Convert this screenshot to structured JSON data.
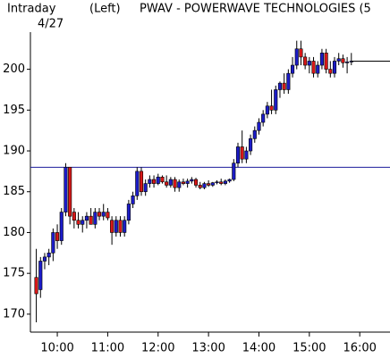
{
  "chart_data": {
    "type": "candlestick",
    "title": "PWAV - POWERWAVE TECHNOLOGIES (5",
    "period_label": "Intraday",
    "date_label": "4/27",
    "axis_side_label": "(Left)",
    "x": [
      575,
      580,
      585,
      590,
      595,
      600,
      605,
      610,
      615,
      620,
      625,
      630,
      635,
      640,
      645,
      650,
      655,
      660,
      665,
      670,
      675,
      680,
      685,
      690,
      695,
      700,
      705,
      710,
      715,
      720,
      725,
      730,
      735,
      740,
      745,
      750,
      755,
      760,
      765,
      770,
      775,
      780,
      785,
      790,
      795,
      800,
      805,
      810,
      815,
      820,
      825,
      830,
      835,
      840,
      845,
      850,
      855,
      860,
      865,
      870,
      875,
      880,
      885,
      890,
      895,
      900,
      905,
      910,
      915,
      920,
      925,
      930,
      935,
      940,
      945,
      950
    ],
    "open": [
      174.5,
      173,
      176.5,
      177,
      177.5,
      180,
      179,
      182.5,
      188,
      182.5,
      181.5,
      181,
      181.5,
      182,
      181,
      182.5,
      182,
      182.5,
      181.5,
      180,
      181.5,
      180,
      181.5,
      183.5,
      184.5,
      187.5,
      185,
      186,
      186.5,
      186,
      186.8,
      186.2,
      185.8,
      186.5,
      185.5,
      186.2,
      186,
      186.3,
      186.5,
      185.8,
      185.5,
      186,
      185.8,
      186.1,
      186.2,
      186,
      186.3,
      186.5,
      188.5,
      190.5,
      189,
      190,
      191.5,
      192.5,
      193.5,
      194.5,
      195.5,
      195,
      197.5,
      198.3,
      197.5,
      199.5,
      200.5,
      202.5,
      201.5,
      200.5,
      201,
      199.5,
      200.5,
      202,
      200,
      199.5,
      201,
      201.3,
      200.8,
      200.9
    ],
    "high": [
      178,
      177,
      177.5,
      178,
      180.5,
      181,
      183,
      188.5,
      188,
      183,
      182.5,
      182,
      182.5,
      183,
      183,
      183,
      183.5,
      183,
      182,
      182,
      182,
      182,
      184,
      185,
      188,
      188,
      186.5,
      187,
      187,
      187.2,
      187,
      187,
      186.8,
      186.8,
      186.5,
      186.6,
      186.6,
      186.8,
      186.7,
      186.2,
      186.2,
      186.4,
      186.2,
      186.4,
      186.6,
      186.5,
      186.6,
      189,
      191,
      192.5,
      190.5,
      192,
      193,
      194,
      195,
      196,
      197.5,
      198,
      198.5,
      199.5,
      200,
      201.5,
      203.5,
      203.5,
      202,
      201.5,
      201.5,
      201,
      202.5,
      202.5,
      201,
      201.5,
      202,
      201.8,
      201.5,
      202
    ],
    "low": [
      169,
      172,
      175.5,
      176,
      176.5,
      178,
      178.5,
      182,
      181,
      180.5,
      180.5,
      180,
      180.5,
      181,
      180.5,
      181.5,
      181.5,
      181.5,
      178.5,
      179.5,
      179.5,
      179.5,
      181,
      183,
      184,
      184.5,
      184.5,
      185.5,
      185.5,
      185.8,
      186,
      185.5,
      185.5,
      185,
      185,
      185.8,
      185.5,
      186,
      185.5,
      185.3,
      185.3,
      185.6,
      185.6,
      185.9,
      185.8,
      185.8,
      186.1,
      186.3,
      188,
      188.5,
      188.5,
      189.5,
      191,
      192,
      193,
      194,
      194.5,
      194.5,
      196.5,
      197,
      197,
      199,
      200,
      200.5,
      200,
      199.5,
      199,
      199,
      200,
      199.5,
      199,
      199,
      200.5,
      200.2,
      199.5,
      200.5
    ],
    "close": [
      172.5,
      176.5,
      177,
      177.5,
      180,
      179,
      182.5,
      188,
      182,
      181.5,
      181,
      181.5,
      182,
      181,
      182.5,
      182,
      182.5,
      181.8,
      180,
      181.5,
      180,
      181.5,
      183.5,
      184.5,
      187.5,
      185,
      186,
      186.5,
      186,
      186.8,
      186.2,
      185.8,
      186.5,
      185.5,
      186.2,
      186,
      186.3,
      186.5,
      185.8,
      185.5,
      186,
      185.8,
      186.1,
      186.2,
      186,
      186.3,
      186.5,
      188.5,
      190.5,
      189,
      190,
      191.5,
      192.5,
      193.5,
      194.5,
      195.5,
      195,
      197.5,
      198.3,
      197.5,
      199.5,
      200.5,
      202.5,
      201.5,
      200.5,
      201,
      199.5,
      200.5,
      202,
      200,
      199.5,
      201,
      201.3,
      200.8,
      200.9,
      201
    ],
    "up_color": "#1c1cc8",
    "down_color": "#d81818",
    "reference_line": 188,
    "reference_color": "#1c1c9c",
    "ylim": [
      167.8,
      206.3
    ],
    "yticks": [
      170,
      175,
      180,
      185,
      190,
      195,
      200
    ],
    "xlim": [
      568,
      996
    ],
    "xticks": [
      {
        "value": 600,
        "label": "10:00"
      },
      {
        "value": 660,
        "label": "11:00"
      },
      {
        "value": 720,
        "label": "12:00"
      },
      {
        "value": 780,
        "label": "13:00"
      },
      {
        "value": 840,
        "label": "14:00"
      },
      {
        "value": 900,
        "label": "15:00"
      },
      {
        "value": 960,
        "label": "16:00"
      }
    ]
  }
}
